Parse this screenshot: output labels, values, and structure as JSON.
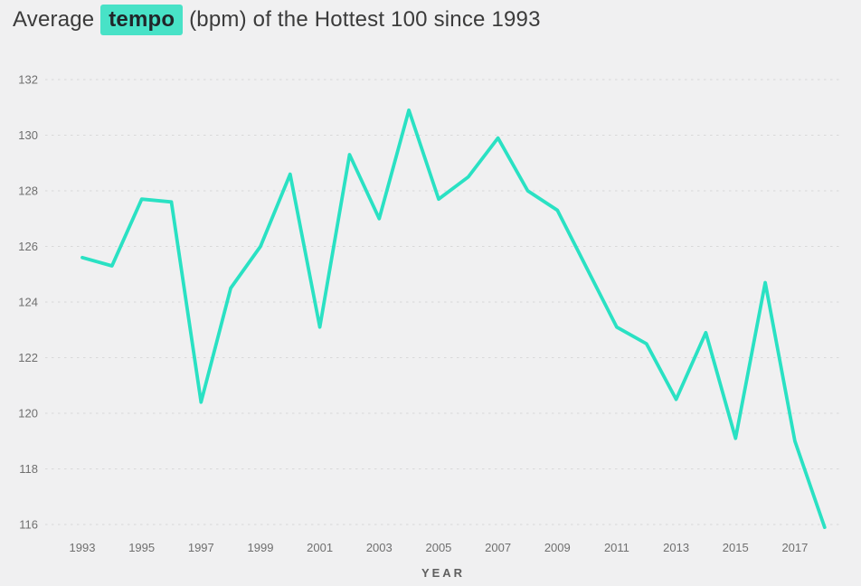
{
  "title": {
    "prefix": "Average ",
    "highlight": "tempo",
    "suffix": " (bpm) of the Hottest 100 since 1993"
  },
  "axis": {
    "x_title": "YEAR"
  },
  "colors": {
    "background": "#f0f0f1",
    "line": "#2ae1c3",
    "highlight_bg": "#48e2c7",
    "title_text": "#3b3b3b",
    "tick_text": "#6f6f6f",
    "gridline": "#d9d9d9",
    "axis_title_text": "#5f5f5f"
  },
  "chart_data": {
    "type": "line",
    "title": "Average tempo (bpm) of the Hottest 100 since 1993",
    "xlabel": "YEAR",
    "ylabel": "",
    "series_name": "Average tempo (bpm)",
    "x": [
      1993,
      1994,
      1995,
      1996,
      1997,
      1998,
      1999,
      2000,
      2001,
      2002,
      2003,
      2004,
      2005,
      2006,
      2007,
      2008,
      2009,
      2010,
      2011,
      2012,
      2013,
      2014,
      2015,
      2016,
      2017,
      2018
    ],
    "values": [
      125.6,
      125.3,
      127.7,
      127.6,
      120.4,
      124.5,
      126.0,
      128.6,
      123.1,
      129.3,
      127.0,
      130.9,
      127.7,
      128.5,
      129.9,
      128.0,
      127.3,
      125.2,
      123.1,
      122.5,
      120.5,
      122.9,
      119.1,
      124.7,
      119.0,
      115.9
    ],
    "ylim": [
      116,
      132
    ],
    "ytick_step": 2,
    "yticks": [
      116,
      118,
      120,
      122,
      124,
      126,
      128,
      130,
      132
    ],
    "xticks": [
      1993,
      1995,
      1997,
      1999,
      2001,
      2003,
      2005,
      2007,
      2009,
      2011,
      2013,
      2015,
      2017
    ],
    "grid": "horizontal-dashed",
    "legend": "none"
  }
}
